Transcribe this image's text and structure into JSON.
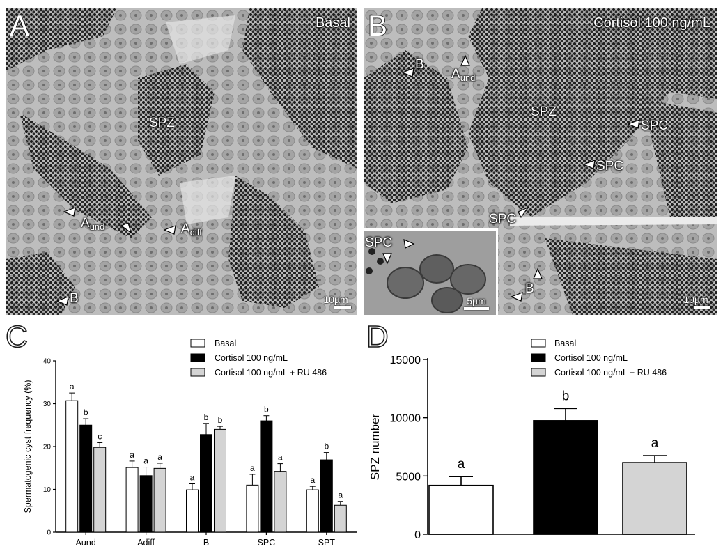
{
  "panelA": {
    "letter": "A",
    "condition": "Basal",
    "labels": {
      "spz": "SPZ",
      "aund_main": "A",
      "aund_sub": "und",
      "adiff_main": "A",
      "adiff_sub": "diff",
      "b": "B"
    },
    "scale": "10µm"
  },
  "panelB": {
    "letter": "B",
    "condition": "Cortisol 100 ng/mL",
    "labels": {
      "b_top": "B",
      "aund_main": "A",
      "aund_sub": "und",
      "spz": "SPZ",
      "spc1": "SPC",
      "spc2": "SPC",
      "spc3": "SPC",
      "spc_inset": "SPC",
      "b_bottom": "B"
    },
    "scale_inset": "5µm",
    "scale": "10µm"
  },
  "colors": {
    "basal": "#ffffff",
    "cortisol": "#000000",
    "ru486": "#d4d4d4",
    "axis": "#000000"
  },
  "chart_data": [
    {
      "panel": "C",
      "type": "bar",
      "ylabel": "Spermatogenic cyst frequency (%)",
      "xlabel": "",
      "ylim": [
        0,
        40
      ],
      "yticks": [
        0,
        10,
        20,
        30,
        40
      ],
      "categories": [
        "Aund",
        "Adiff",
        "B",
        "SPC",
        "SPT"
      ],
      "legend": [
        "Basal",
        "Cortisol 100 ng/mL",
        "Cortisol 100 ng/mL + RU 486"
      ],
      "legend_position": "top-right",
      "series": [
        {
          "name": "Basal",
          "values": [
            30.7,
            15.1,
            9.9,
            11.0,
            9.9
          ],
          "errors": [
            1.8,
            1.5,
            1.4,
            2.5,
            0.8
          ],
          "letters": [
            "a",
            "a",
            "a",
            "a",
            "a"
          ]
        },
        {
          "name": "Cortisol 100 ng/mL",
          "values": [
            25.0,
            13.2,
            22.8,
            26.0,
            16.9
          ],
          "errors": [
            1.5,
            2.0,
            2.6,
            1.2,
            1.7
          ],
          "letters": [
            "b",
            "a",
            "b",
            "b",
            "b"
          ]
        },
        {
          "name": "Cortisol 100 ng/mL + RU 486",
          "values": [
            19.8,
            14.9,
            24.0,
            14.2,
            6.3
          ],
          "errors": [
            1.1,
            1.2,
            0.7,
            1.8,
            0.9
          ],
          "letters": [
            "c",
            "a",
            "b",
            "a",
            "a"
          ]
        }
      ]
    },
    {
      "panel": "D",
      "type": "bar",
      "ylabel": "SPZ number",
      "xlabel": "",
      "ylim": [
        0,
        15000
      ],
      "yticks": [
        0,
        5000,
        10000,
        15000
      ],
      "categories": [
        "Basal",
        "Cortisol 100 ng/mL",
        "Cortisol 100 ng/mL + RU 486"
      ],
      "legend": [
        "Basal",
        "Cortisol 100 ng/mL",
        "Cortisol 100 ng/mL + RU 486"
      ],
      "legend_position": "top-right",
      "series": [
        {
          "name": "SPZ number",
          "values": [
            4200,
            9750,
            6150
          ],
          "errors": [
            750,
            1050,
            600
          ],
          "letters": [
            "a",
            "b",
            "a"
          ]
        }
      ]
    }
  ]
}
